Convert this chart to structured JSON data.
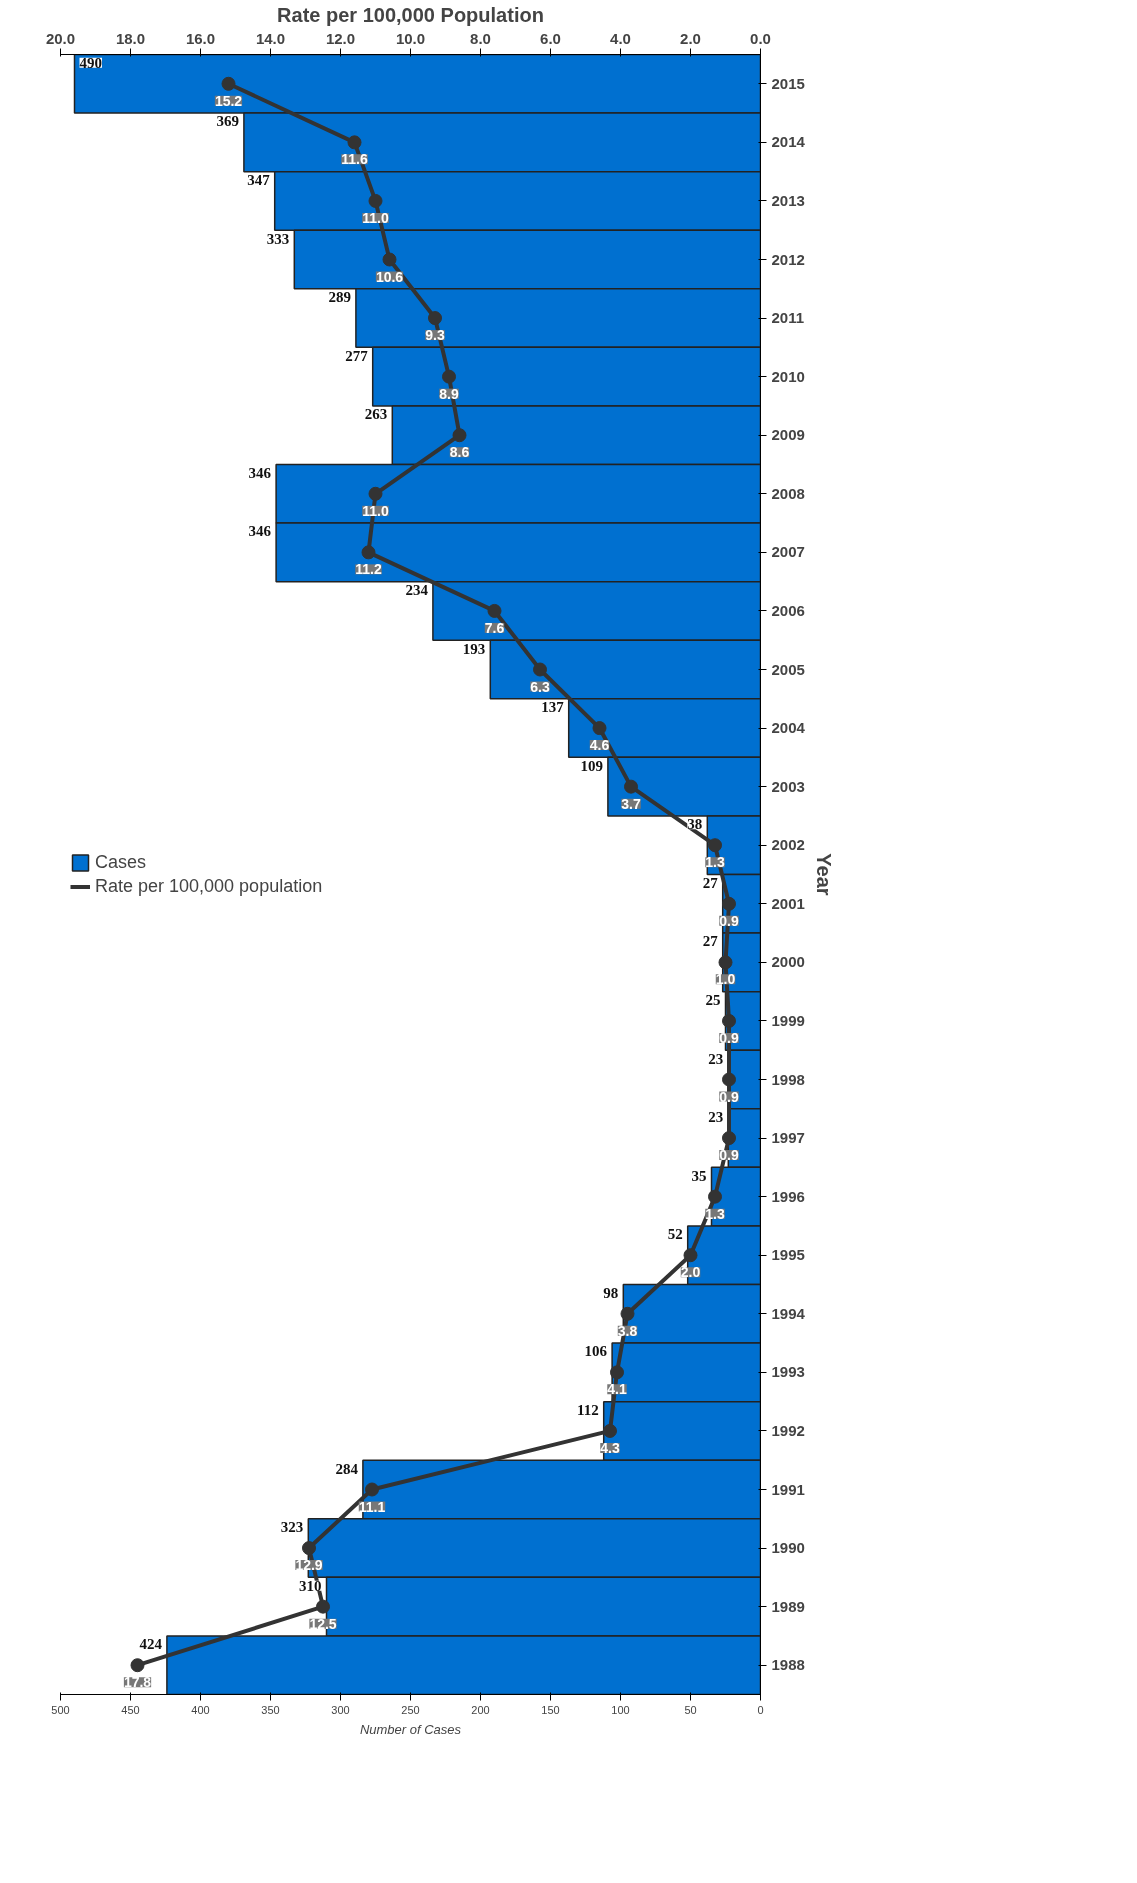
{
  "chart_data": {
    "type": "bar",
    "orientation": "horizontal",
    "xlabel": "Number of Cases",
    "x2label": "Rate per 100,000 Population",
    "ylabel": "Year",
    "categories": [
      "2015",
      "2014",
      "2013",
      "2012",
      "2011",
      "2010",
      "2009",
      "2008",
      "2007",
      "2006",
      "2005",
      "2004",
      "2003",
      "2002",
      "2001",
      "2000",
      "1999",
      "1998",
      "1997",
      "1996",
      "1995",
      "1994",
      "1993",
      "1992",
      "1991",
      "1990",
      "1989",
      "1988"
    ],
    "series": [
      {
        "name": "Cases",
        "color": "#0070d0",
        "values": [
          490,
          369,
          347,
          333,
          289,
          277,
          263,
          346,
          346,
          234,
          193,
          137,
          109,
          38,
          27,
          27,
          25,
          23,
          23,
          35,
          52,
          98,
          106,
          112,
          284,
          323,
          310,
          424
        ]
      },
      {
        "name": "Rate per 100,000 population",
        "type": "line",
        "axis": "x2",
        "color": "#333333",
        "marker": "circle",
        "line_style": "solid",
        "values": [
          15.2,
          11.6,
          11.0,
          10.6,
          9.3,
          8.9,
          8.6,
          11.0,
          11.2,
          7.6,
          6.3,
          4.6,
          3.7,
          1.3,
          0.9,
          1.0,
          0.9,
          0.9,
          0.9,
          1.3,
          2.0,
          3.8,
          4.1,
          4.3,
          11.1,
          12.9,
          12.5,
          17.8
        ],
        "value_labels": [
          "15.2",
          "11.6",
          "11.0",
          "10.6",
          "9.3",
          "8.9",
          "8.6",
          "11.0",
          "11.2",
          "7.6",
          "6.3",
          "4.6",
          "3.7",
          "1.3",
          "0.9",
          "1.0",
          "0.9",
          "0.9",
          "0.9",
          "1.3",
          "2.0",
          "3.8",
          "4.1",
          "4.3",
          "11.1",
          "12.9",
          "12.5",
          "17.8"
        ]
      }
    ],
    "xlim": [
      500,
      0
    ],
    "xticks": [
      0,
      50,
      100,
      150,
      200,
      250,
      300,
      350,
      400,
      450,
      500
    ],
    "x2lim": [
      20,
      0
    ],
    "x2ticks": [
      {
        "value": 0,
        "label": "0.0"
      },
      {
        "value": 2,
        "label": "2.0"
      },
      {
        "value": 4,
        "label": "4.0"
      },
      {
        "value": 6,
        "label": "6.0"
      },
      {
        "value": 8,
        "label": "8.0"
      },
      {
        "value": 10,
        "label": "10.0"
      },
      {
        "value": 12,
        "label": "12.0"
      },
      {
        "value": 14,
        "label": "14.0"
      },
      {
        "value": 16,
        "label": "16.0"
      },
      {
        "value": 18,
        "label": "18.0"
      },
      {
        "value": 20,
        "label": "20.0"
      }
    ],
    "data_labels": true,
    "grid": false,
    "legend": "left"
  }
}
